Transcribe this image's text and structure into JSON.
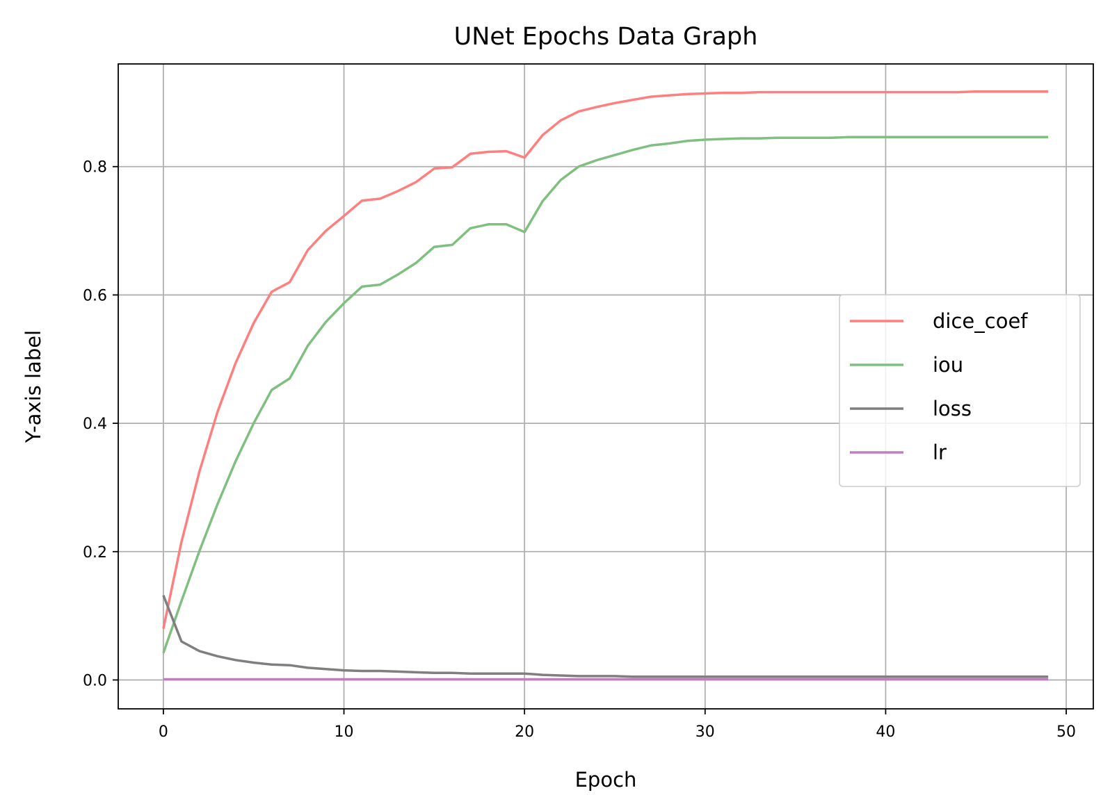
{
  "chart_data": {
    "type": "line",
    "title": "UNet Epochs Data Graph",
    "xlabel": "Epoch",
    "ylabel": "Y-axis label",
    "xlim": [
      -2.5,
      51.5
    ],
    "ylim": [
      -0.045,
      0.96
    ],
    "xticks": [
      0,
      10,
      20,
      30,
      40,
      50
    ],
    "yticks": [
      0.0,
      0.2,
      0.4,
      0.6,
      0.8
    ],
    "xtick_labels": [
      "0",
      "10",
      "20",
      "30",
      "40",
      "50"
    ],
    "ytick_labels": [
      "0.0",
      "0.2",
      "0.4",
      "0.6",
      "0.8"
    ],
    "grid": true,
    "legend_position": "center-right",
    "x": [
      0,
      1,
      2,
      3,
      4,
      5,
      6,
      7,
      8,
      9,
      10,
      11,
      12,
      13,
      14,
      15,
      16,
      17,
      18,
      19,
      20,
      21,
      22,
      23,
      24,
      25,
      26,
      27,
      28,
      29,
      30,
      31,
      32,
      33,
      34,
      35,
      36,
      37,
      38,
      39,
      40,
      41,
      42,
      43,
      44,
      45,
      46,
      47,
      48,
      49
    ],
    "series": [
      {
        "name": "dice_coef",
        "color": "#ff7f7f",
        "values": [
          0.08,
          0.215,
          0.325,
          0.418,
          0.494,
          0.556,
          0.605,
          0.62,
          0.67,
          0.7,
          0.723,
          0.747,
          0.75,
          0.762,
          0.776,
          0.797,
          0.799,
          0.82,
          0.823,
          0.824,
          0.814,
          0.849,
          0.872,
          0.886,
          0.893,
          0.899,
          0.904,
          0.909,
          0.911,
          0.913,
          0.914,
          0.915,
          0.915,
          0.916,
          0.916,
          0.916,
          0.916,
          0.916,
          0.916,
          0.916,
          0.916,
          0.916,
          0.916,
          0.916,
          0.916,
          0.917,
          0.917,
          0.917,
          0.917,
          0.917
        ]
      },
      {
        "name": "iou",
        "color": "#7fbf7f",
        "values": [
          0.042,
          0.123,
          0.201,
          0.274,
          0.341,
          0.4,
          0.452,
          0.47,
          0.521,
          0.558,
          0.587,
          0.613,
          0.616,
          0.632,
          0.65,
          0.675,
          0.678,
          0.704,
          0.71,
          0.71,
          0.698,
          0.746,
          0.779,
          0.8,
          0.81,
          0.818,
          0.826,
          0.833,
          0.836,
          0.84,
          0.842,
          0.843,
          0.844,
          0.844,
          0.845,
          0.845,
          0.845,
          0.845,
          0.846,
          0.846,
          0.846,
          0.846,
          0.846,
          0.846,
          0.846,
          0.846,
          0.846,
          0.846,
          0.846,
          0.846
        ]
      },
      {
        "name": "loss",
        "color": "#7f7f7f",
        "values": [
          0.132,
          0.06,
          0.045,
          0.037,
          0.031,
          0.027,
          0.024,
          0.023,
          0.019,
          0.017,
          0.015,
          0.014,
          0.014,
          0.013,
          0.012,
          0.011,
          0.011,
          0.01,
          0.01,
          0.01,
          0.01,
          0.008,
          0.007,
          0.006,
          0.006,
          0.006,
          0.005,
          0.005,
          0.005,
          0.005,
          0.005,
          0.005,
          0.005,
          0.005,
          0.005,
          0.005,
          0.005,
          0.005,
          0.005,
          0.005,
          0.005,
          0.005,
          0.005,
          0.005,
          0.005,
          0.005,
          0.005,
          0.005,
          0.005,
          0.005
        ]
      },
      {
        "name": "lr",
        "color": "#bf7fbf",
        "values": [
          0.001,
          0.001,
          0.001,
          0.001,
          0.001,
          0.001,
          0.001,
          0.001,
          0.001,
          0.001,
          0.001,
          0.001,
          0.001,
          0.001,
          0.001,
          0.001,
          0.001,
          0.001,
          0.001,
          0.001,
          0.001,
          0.001,
          0.001,
          0.001,
          0.001,
          0.001,
          0.001,
          0.001,
          0.001,
          0.001,
          0.001,
          0.001,
          0.001,
          0.001,
          0.001,
          0.001,
          0.001,
          0.001,
          0.001,
          0.001,
          0.001,
          0.001,
          0.001,
          0.001,
          0.001,
          0.001,
          0.001,
          0.001,
          0.001,
          0.001
        ]
      }
    ]
  }
}
